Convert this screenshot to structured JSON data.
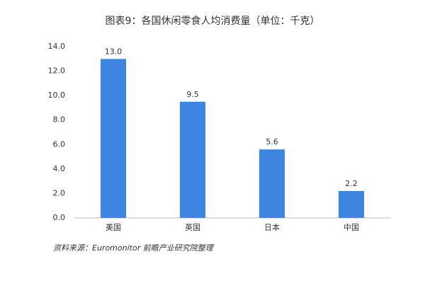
{
  "chart_data": {
    "type": "bar",
    "title": "图表9：各国休闲零食人均消费量（单位：千克）",
    "categories": [
      "美国",
      "英国",
      "日本",
      "中国"
    ],
    "values": [
      13.0,
      9.5,
      5.6,
      2.2
    ],
    "value_labels": [
      "13.0",
      "9.5",
      "5.6",
      "2.2"
    ],
    "color": "#3d85e0",
    "ylim": [
      0,
      14
    ],
    "yticks": [
      {
        "value": 0,
        "label": "0.0"
      },
      {
        "value": 2,
        "label": "2.0"
      },
      {
        "value": 4,
        "label": "4.0"
      },
      {
        "value": 6,
        "label": "6.0"
      },
      {
        "value": 8,
        "label": "8.0"
      },
      {
        "value": 10,
        "label": "10.0"
      },
      {
        "value": 12,
        "label": "12.0"
      },
      {
        "value": 14,
        "label": "14.0"
      }
    ],
    "grid": false,
    "source": "资料来源：Euromonitor 前瞻产业研究院整理"
  }
}
